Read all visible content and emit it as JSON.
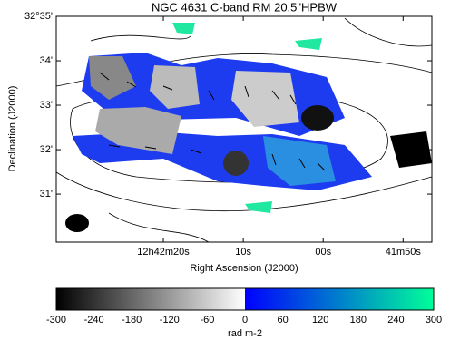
{
  "chart_data": {
    "type": "image",
    "title": "NGC 4631   C-band   RM   20.5\"HPBW",
    "x_label": "Right Ascension (J2000)",
    "y_label": "Declination (J2000)",
    "xlim": [
      45753.4,
      45706.4
    ],
    "xticks": [
      {
        "value": 45740,
        "label": "12h42m20s"
      },
      {
        "value": 45730,
        "label": "10s"
      },
      {
        "value": 45720,
        "label": "00s"
      },
      {
        "value": 45710,
        "label": "41m50s"
      }
    ],
    "ylim": [
      29.92,
      35
    ],
    "yticks": [
      {
        "value": 35,
        "label": "32°35'"
      },
      {
        "value": 34,
        "label": "34'"
      },
      {
        "value": 33,
        "label": "33'"
      },
      {
        "value": 32,
        "label": "32'"
      },
      {
        "value": 31,
        "label": "31'"
      }
    ],
    "colorbar": {
      "lim": [
        -300,
        300
      ],
      "ticks": [
        -300,
        -240,
        -180,
        -120,
        -60,
        0,
        60,
        120,
        180,
        240,
        300
      ],
      "label": "rad m-2",
      "colors": [
        "#000000",
        "#ffffff",
        "#0000ff",
        "#00ff99"
      ]
    }
  }
}
